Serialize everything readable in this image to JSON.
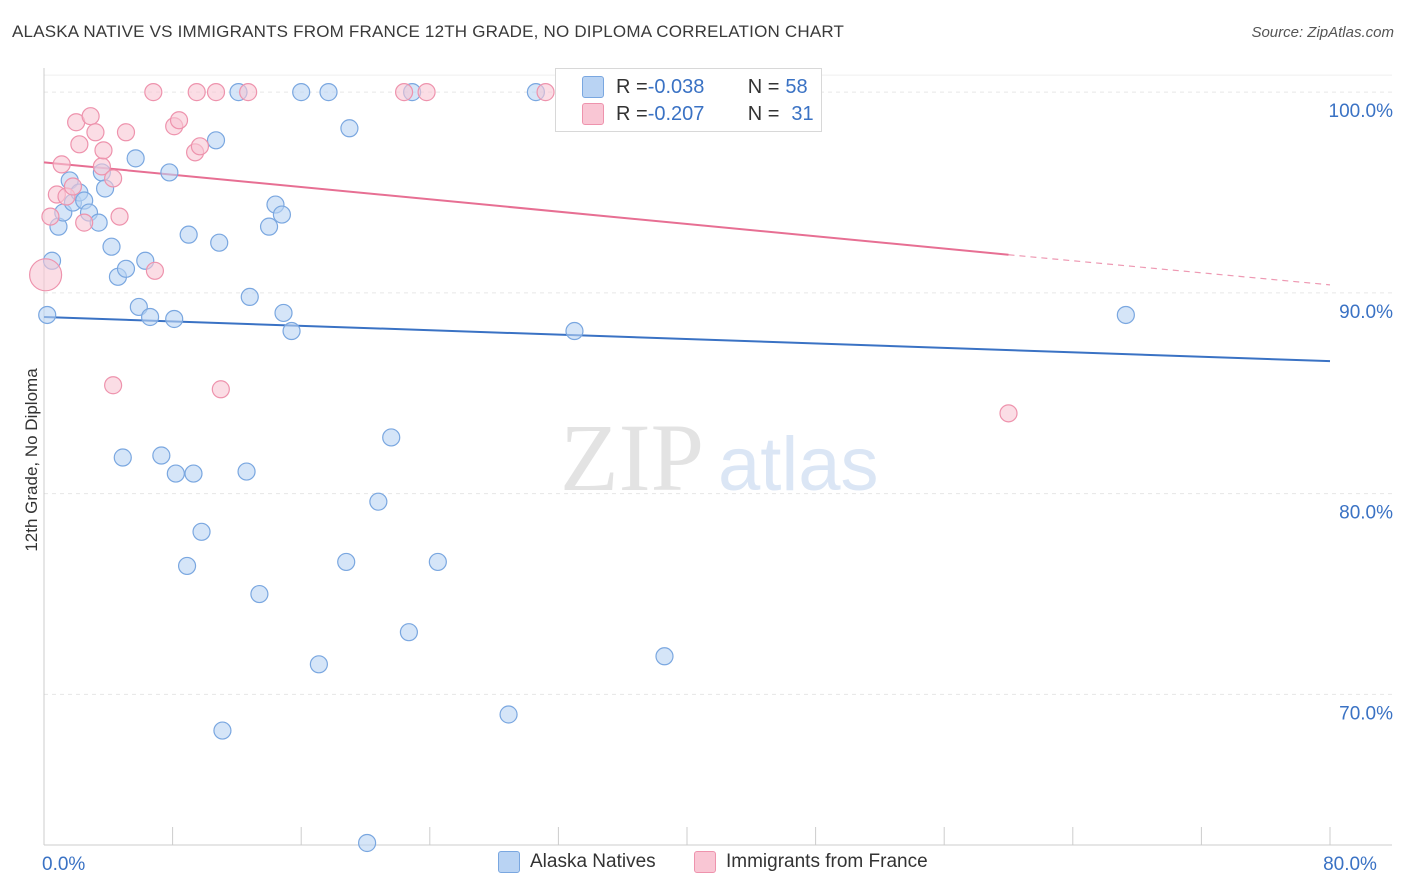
{
  "title": "ALASKA NATIVE VS IMMIGRANTS FROM FRANCE 12TH GRADE, NO DIPLOMA CORRELATION CHART",
  "source": "Source: ZipAtlas.com",
  "watermark": {
    "zip": "ZIP",
    "atlas": "atlas"
  },
  "legend_top": [
    {
      "r_label": "R = ",
      "r_value": "-0.038",
      "n_label": "N = ",
      "n_value": "58",
      "fill": "#b9d3f3",
      "stroke": "#7aa7e0"
    },
    {
      "r_label": "R = ",
      "r_value": "-0.207",
      "n_label": "N = ",
      "n_value": "31",
      "fill": "#f9c6d4",
      "stroke": "#ee93ad"
    }
  ],
  "chart_data": {
    "type": "scatter",
    "xlabel": "",
    "ylabel": "12th Grade, No Diploma",
    "xlim": [
      0,
      80
    ],
    "ylim": [
      62.5,
      101.5
    ],
    "x_tick_labels": [
      {
        "value": 0,
        "label": "0.0%"
      },
      {
        "value": 80,
        "label": "80.0%"
      }
    ],
    "y_tick_labels": [
      {
        "value": 100,
        "label": "100.0%"
      },
      {
        "value": 90,
        "label": "90.0%"
      },
      {
        "value": 80,
        "label": "80.0%"
      },
      {
        "value": 70,
        "label": "70.0%"
      }
    ],
    "grid": true,
    "series": [
      {
        "name": "Alaska Natives",
        "color": "#7aa7e0",
        "fill": "#b9d3f3",
        "line_color": "#3a72c4",
        "trend": {
          "x0": 0,
          "y0": 88.8,
          "x1": 80,
          "y1": 86.6
        },
        "points": [
          [
            0.2,
            88.9
          ],
          [
            0.5,
            91.6
          ],
          [
            0.9,
            93.3
          ],
          [
            1.2,
            94.0
          ],
          [
            1.6,
            95.6
          ],
          [
            1.8,
            94.5
          ],
          [
            2.2,
            95.0
          ],
          [
            2.5,
            94.6
          ],
          [
            2.8,
            94.0
          ],
          [
            3.4,
            93.5
          ],
          [
            3.6,
            96.0
          ],
          [
            3.8,
            95.2
          ],
          [
            4.2,
            92.3
          ],
          [
            4.6,
            90.8
          ],
          [
            5.1,
            91.2
          ],
          [
            5.7,
            96.7
          ],
          [
            5.9,
            89.3
          ],
          [
            6.3,
            91.6
          ],
          [
            6.6,
            88.8
          ],
          [
            7.8,
            96.0
          ],
          [
            8.1,
            88.7
          ],
          [
            9.0,
            92.9
          ],
          [
            10.7,
            97.6
          ],
          [
            10.9,
            92.5
          ],
          [
            12.8,
            89.8
          ],
          [
            14.0,
            93.3
          ],
          [
            14.4,
            94.4
          ],
          [
            14.8,
            93.9
          ],
          [
            14.9,
            89.0
          ],
          [
            15.4,
            88.1
          ],
          [
            16.0,
            100.0
          ],
          [
            17.7,
            100.0
          ],
          [
            19.0,
            98.2
          ],
          [
            30.6,
            100.0
          ],
          [
            41.0,
            100.0
          ],
          [
            44.2,
            100.0
          ],
          [
            33.0,
            88.1
          ],
          [
            67.3,
            88.9
          ],
          [
            4.9,
            81.8
          ],
          [
            7.3,
            81.9
          ],
          [
            8.2,
            81.0
          ],
          [
            9.3,
            81.0
          ],
          [
            12.6,
            81.1
          ],
          [
            21.6,
            82.8
          ],
          [
            20.8,
            79.6
          ],
          [
            9.8,
            78.1
          ],
          [
            8.9,
            76.4
          ],
          [
            18.8,
            76.6
          ],
          [
            24.5,
            76.6
          ],
          [
            13.4,
            75.0
          ],
          [
            22.7,
            73.1
          ],
          [
            38.6,
            71.9
          ],
          [
            17.1,
            71.5
          ],
          [
            28.9,
            69.0
          ],
          [
            11.1,
            68.2
          ],
          [
            20.1,
            62.6
          ],
          [
            12.1,
            100.0
          ],
          [
            22.9,
            100.0
          ]
        ]
      },
      {
        "name": "Immigrants from France",
        "color": "#ee93ad",
        "fill": "#f9c6d4",
        "line_color": "#e76f93",
        "trend": {
          "x0": 0,
          "y0": 96.5,
          "x1": 60,
          "y1": 91.9,
          "dash_x1": 80,
          "dash_y1": 90.4
        },
        "points": [
          [
            0.1,
            90.9
          ],
          [
            0.4,
            93.8
          ],
          [
            0.8,
            94.9
          ],
          [
            1.1,
            96.4
          ],
          [
            1.4,
            94.8
          ],
          [
            1.8,
            95.3
          ],
          [
            2.0,
            98.5
          ],
          [
            2.2,
            97.4
          ],
          [
            2.5,
            93.5
          ],
          [
            2.9,
            98.8
          ],
          [
            3.2,
            98.0
          ],
          [
            3.6,
            96.3
          ],
          [
            3.7,
            97.1
          ],
          [
            4.3,
            95.7
          ],
          [
            4.7,
            93.8
          ],
          [
            5.1,
            98.0
          ],
          [
            6.9,
            91.1
          ],
          [
            6.8,
            100.0
          ],
          [
            8.1,
            98.3
          ],
          [
            8.4,
            98.6
          ],
          [
            9.4,
            97.0
          ],
          [
            9.7,
            97.3
          ],
          [
            9.5,
            100.0
          ],
          [
            10.7,
            100.0
          ],
          [
            12.7,
            100.0
          ],
          [
            22.4,
            100.0
          ],
          [
            23.8,
            100.0
          ],
          [
            31.2,
            100.0
          ],
          [
            4.3,
            85.4
          ],
          [
            11.0,
            85.2
          ],
          [
            60.0,
            84.0
          ]
        ]
      }
    ]
  }
}
